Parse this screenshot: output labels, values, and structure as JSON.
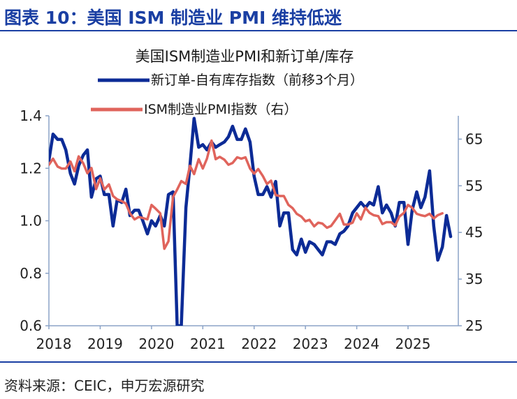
{
  "header": {
    "title": "图表 10：美国 ISM 制造业 PMI 维持低迷"
  },
  "footer": {
    "source": "资料来源：CEIC，申万宏源研究"
  },
  "colors": {
    "title": "#1a3fa3",
    "series_ratio": "#0c2b96",
    "series_pmi": "#e0645c",
    "axis": "#8ba3c7"
  },
  "chart_data": {
    "type": "line",
    "title": "美国ISM制造业PMI和新订单/库存",
    "xlabel": "",
    "ylabel": "",
    "x_tick_labels": [
      "2018",
      "2019",
      "2020",
      "2021",
      "2022",
      "2023",
      "2024",
      "2025"
    ],
    "xlim": [
      2018.0,
      2025.98
    ],
    "y_left": {
      "lim": [
        0.6,
        1.4
      ],
      "ticks": [
        0.6,
        0.8,
        1.0,
        1.2,
        1.4
      ],
      "tick_labels": [
        "0.6",
        "0.8",
        "1.0",
        "1.2",
        "1.4"
      ]
    },
    "y_right": {
      "lim": [
        25,
        70
      ],
      "ticks": [
        25,
        35,
        45,
        55,
        65
      ],
      "tick_labels": [
        "25",
        "35",
        "45",
        "55",
        "65"
      ]
    },
    "grid": false,
    "legend": "top",
    "series": [
      {
        "name": "新订单-自有库存指数（前移3个月）",
        "axis": "left",
        "color": "#0c2b96",
        "points": [
          [
            2018.0,
            1.23
          ],
          [
            2018.08,
            1.33
          ],
          [
            2018.17,
            1.31
          ],
          [
            2018.25,
            1.31
          ],
          [
            2018.33,
            1.27
          ],
          [
            2018.42,
            1.18
          ],
          [
            2018.5,
            1.14
          ],
          [
            2018.58,
            1.21
          ],
          [
            2018.67,
            1.25
          ],
          [
            2018.75,
            1.27
          ],
          [
            2018.83,
            1.09
          ],
          [
            2018.92,
            1.16
          ],
          [
            2019.0,
            1.17
          ],
          [
            2019.08,
            1.1
          ],
          [
            2019.17,
            1.1
          ],
          [
            2019.25,
            0.98
          ],
          [
            2019.33,
            1.08
          ],
          [
            2019.42,
            1.07
          ],
          [
            2019.5,
            1.12
          ],
          [
            2019.58,
            1.02
          ],
          [
            2019.67,
            1.04
          ],
          [
            2019.75,
            1.04
          ],
          [
            2019.83,
            1.0
          ],
          [
            2019.92,
            0.95
          ],
          [
            2020.0,
            1.0
          ],
          [
            2020.08,
            0.98
          ],
          [
            2020.17,
            1.02
          ],
          [
            2020.25,
            0.98
          ],
          [
            2020.33,
            1.1
          ],
          [
            2020.42,
            1.11
          ],
          [
            2020.5,
            0.6
          ],
          [
            2020.58,
            0.6
          ],
          [
            2020.67,
            1.05
          ],
          [
            2020.75,
            1.21
          ],
          [
            2020.83,
            1.39
          ],
          [
            2020.92,
            1.28
          ],
          [
            2021.0,
            1.29
          ],
          [
            2021.08,
            1.27
          ],
          [
            2021.17,
            1.3
          ],
          [
            2021.25,
            1.28
          ],
          [
            2021.33,
            1.29
          ],
          [
            2021.42,
            1.3
          ],
          [
            2021.5,
            1.32
          ],
          [
            2021.58,
            1.36
          ],
          [
            2021.67,
            1.31
          ],
          [
            2021.75,
            1.31
          ],
          [
            2021.83,
            1.35
          ],
          [
            2021.92,
            1.3
          ],
          [
            2022.0,
            1.17
          ],
          [
            2022.08,
            1.1
          ],
          [
            2022.17,
            1.1
          ],
          [
            2022.25,
            1.13
          ],
          [
            2022.33,
            1.09
          ],
          [
            2022.42,
            1.15
          ],
          [
            2022.5,
            0.98
          ],
          [
            2022.58,
            1.03
          ],
          [
            2022.67,
            1.03
          ],
          [
            2022.75,
            0.89
          ],
          [
            2022.83,
            0.87
          ],
          [
            2022.92,
            0.93
          ],
          [
            2023.0,
            0.88
          ],
          [
            2023.08,
            0.92
          ],
          [
            2023.17,
            0.91
          ],
          [
            2023.25,
            0.89
          ],
          [
            2023.33,
            0.87
          ],
          [
            2023.42,
            0.92
          ],
          [
            2023.5,
            0.92
          ],
          [
            2023.58,
            0.91
          ],
          [
            2023.67,
            0.95
          ],
          [
            2023.75,
            0.96
          ],
          [
            2023.83,
            0.98
          ],
          [
            2023.92,
            1.03
          ],
          [
            2024.0,
            1.05
          ],
          [
            2024.08,
            1.07
          ],
          [
            2024.17,
            1.05
          ],
          [
            2024.25,
            1.07
          ],
          [
            2024.33,
            1.06
          ],
          [
            2024.42,
            1.13
          ],
          [
            2024.5,
            1.03
          ],
          [
            2024.58,
            1.06
          ],
          [
            2024.67,
            1.03
          ],
          [
            2024.75,
            0.98
          ],
          [
            2024.83,
            1.07
          ],
          [
            2024.92,
            1.07
          ],
          [
            2025.0,
            0.91
          ],
          [
            2025.08,
            1.04
          ],
          [
            2025.17,
            1.11
          ],
          [
            2025.25,
            1.05
          ],
          [
            2025.33,
            1.09
          ],
          [
            2025.42,
            1.19
          ],
          [
            2025.5,
            0.98
          ],
          [
            2025.58,
            0.85
          ],
          [
            2025.67,
            0.9
          ],
          [
            2025.75,
            1.02
          ],
          [
            2025.83,
            0.94
          ]
        ]
      },
      {
        "name": "ISM制造业PMI指数（右）",
        "axis": "right",
        "color": "#e0645c",
        "points": [
          [
            2018.0,
            59.5
          ],
          [
            2018.08,
            60.8
          ],
          [
            2018.17,
            59.1
          ],
          [
            2018.25,
            58.7
          ],
          [
            2018.33,
            58.7
          ],
          [
            2018.42,
            60.2
          ],
          [
            2018.5,
            58.1
          ],
          [
            2018.58,
            61.3
          ],
          [
            2018.67,
            59.8
          ],
          [
            2018.75,
            57.7
          ],
          [
            2018.83,
            58.8
          ],
          [
            2018.92,
            54.3
          ],
          [
            2019.0,
            56.6
          ],
          [
            2019.08,
            54.2
          ],
          [
            2019.17,
            55.3
          ],
          [
            2019.25,
            52.8
          ],
          [
            2019.33,
            52.1
          ],
          [
            2019.42,
            51.7
          ],
          [
            2019.5,
            51.2
          ],
          [
            2019.58,
            49.1
          ],
          [
            2019.67,
            47.8
          ],
          [
            2019.75,
            48.3
          ],
          [
            2019.83,
            48.1
          ],
          [
            2019.92,
            47.8
          ],
          [
            2020.0,
            50.9
          ],
          [
            2020.08,
            50.1
          ],
          [
            2020.17,
            49.1
          ],
          [
            2020.25,
            41.5
          ],
          [
            2020.33,
            43.1
          ],
          [
            2020.42,
            52.6
          ],
          [
            2020.5,
            54.2
          ],
          [
            2020.58,
            56.0
          ],
          [
            2020.67,
            55.4
          ],
          [
            2020.75,
            59.3
          ],
          [
            2020.83,
            57.5
          ],
          [
            2020.92,
            60.7
          ],
          [
            2021.0,
            58.7
          ],
          [
            2021.08,
            60.8
          ],
          [
            2021.17,
            64.7
          ],
          [
            2021.25,
            60.7
          ],
          [
            2021.33,
            61.2
          ],
          [
            2021.42,
            60.6
          ],
          [
            2021.5,
            59.5
          ],
          [
            2021.58,
            59.9
          ],
          [
            2021.67,
            61.1
          ],
          [
            2021.75,
            60.8
          ],
          [
            2021.83,
            61.1
          ],
          [
            2021.92,
            58.7
          ],
          [
            2022.0,
            57.6
          ],
          [
            2022.08,
            58.6
          ],
          [
            2022.17,
            57.1
          ],
          [
            2022.25,
            55.4
          ],
          [
            2022.33,
            56.1
          ],
          [
            2022.42,
            53.0
          ],
          [
            2022.5,
            52.8
          ],
          [
            2022.58,
            52.8
          ],
          [
            2022.67,
            50.9
          ],
          [
            2022.75,
            50.2
          ],
          [
            2022.83,
            49.0
          ],
          [
            2022.92,
            48.4
          ],
          [
            2023.0,
            47.4
          ],
          [
            2023.08,
            47.7
          ],
          [
            2023.17,
            46.3
          ],
          [
            2023.25,
            47.1
          ],
          [
            2023.33,
            46.9
          ],
          [
            2023.42,
            46.0
          ],
          [
            2023.5,
            46.4
          ],
          [
            2023.58,
            47.6
          ],
          [
            2023.67,
            49.0
          ],
          [
            2023.75,
            46.7
          ],
          [
            2023.83,
            46.7
          ],
          [
            2023.92,
            47.1
          ],
          [
            2024.0,
            49.1
          ],
          [
            2024.08,
            47.8
          ],
          [
            2024.17,
            50.3
          ],
          [
            2024.25,
            49.2
          ],
          [
            2024.33,
            48.7
          ],
          [
            2024.42,
            48.5
          ],
          [
            2024.5,
            46.8
          ],
          [
            2024.58,
            47.2
          ],
          [
            2024.67,
            47.2
          ],
          [
            2024.75,
            46.5
          ],
          [
            2024.83,
            48.4
          ],
          [
            2024.92,
            49.2
          ],
          [
            2025.0,
            50.9
          ],
          [
            2025.08,
            50.3
          ],
          [
            2025.17,
            49.0
          ],
          [
            2025.25,
            48.7
          ],
          [
            2025.33,
            48.5
          ],
          [
            2025.42,
            49.0
          ],
          [
            2025.5,
            48.0
          ],
          [
            2025.58,
            48.7
          ],
          [
            2025.67,
            49.1
          ]
        ]
      }
    ]
  }
}
